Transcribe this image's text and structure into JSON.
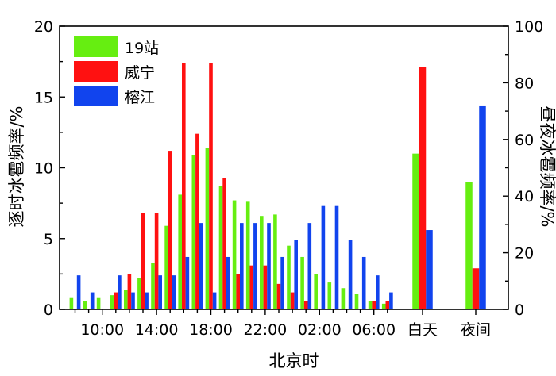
{
  "chart_data": {
    "type": "bar",
    "x_title": "北京时",
    "y_left_title": "逐时冰雹频率/%",
    "y_right_title": "昼夜冰雹频率/%",
    "y_left_range": [
      0,
      20
    ],
    "y_left_ticks": [
      0,
      5,
      10,
      15,
      20
    ],
    "y_right_range": [
      0,
      100
    ],
    "y_right_ticks": [
      0,
      20,
      40,
      60,
      80,
      100
    ],
    "hour_x_tick_labels": [
      "10:00",
      "14:00",
      "18:00",
      "22:00",
      "02:00",
      "06:00"
    ],
    "hours": [
      "08:00",
      "09:00",
      "10:00",
      "11:00",
      "12:00",
      "13:00",
      "14:00",
      "15:00",
      "16:00",
      "17:00",
      "18:00",
      "19:00",
      "20:00",
      "21:00",
      "22:00",
      "23:00",
      "00:00",
      "01:00",
      "02:00",
      "03:00",
      "04:00",
      "05:00",
      "06:00",
      "07:00"
    ],
    "day_night_categories": [
      "白天",
      "夜间"
    ],
    "legend_position": "top-left",
    "series": [
      {
        "name": "19站",
        "color": "#66ee11",
        "hourly": [
          0.8,
          0.6,
          0.8,
          1.0,
          1.4,
          2.2,
          3.3,
          5.9,
          8.1,
          10.9,
          11.4,
          8.7,
          7.7,
          7.6,
          6.6,
          6.7,
          4.5,
          3.7,
          2.5,
          1.9,
          1.5,
          1.1,
          0.6,
          0.4
        ],
        "day_night": [
          55,
          45
        ]
      },
      {
        "name": "威宁",
        "color": "#ff1111",
        "hourly": [
          0,
          0,
          0,
          1.2,
          2.5,
          6.8,
          6.8,
          11.2,
          17.4,
          12.4,
          17.4,
          9.3,
          2.5,
          3.1,
          3.1,
          1.8,
          1.2,
          0.6,
          0,
          0,
          0,
          0,
          0.6,
          0.6
        ],
        "day_night": [
          85.5,
          14.5
        ]
      },
      {
        "name": "榕江",
        "color": "#1144ee",
        "hourly": [
          2.4,
          1.2,
          0,
          2.4,
          1.2,
          1.2,
          2.4,
          2.4,
          3.7,
          6.1,
          1.2,
          3.7,
          6.1,
          6.1,
          6.1,
          3.7,
          4.9,
          6.1,
          7.3,
          7.3,
          4.9,
          3.7,
          2.4,
          1.2
        ],
        "day_night": [
          28,
          72
        ]
      }
    ]
  }
}
